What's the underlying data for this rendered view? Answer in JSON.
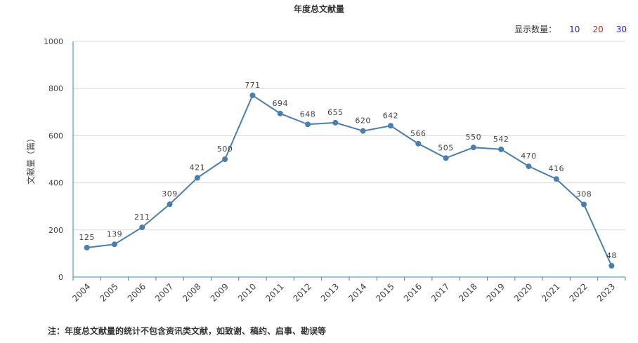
{
  "colors": {
    "line": "#4a7eac",
    "axis": "#2d8ab0",
    "grid": "#dcdcdc",
    "opt_10": "#2222cc",
    "opt_20": "#cc2222",
    "opt_30": "#2222cc"
  },
  "controls": {
    "display_count_label": "显示数量：",
    "options": [
      "10",
      "20",
      "30"
    ]
  },
  "note": "注：年度总文献量的统计不包含资讯类文献，如致谢、稿约、启事、勘误等",
  "chart_data": {
    "type": "line",
    "title": "年度总文献量",
    "xlabel": "",
    "ylabel": "文献量（篇）",
    "ylim": [
      0,
      1000
    ],
    "yticks": [
      0,
      200,
      400,
      600,
      800,
      1000
    ],
    "grid": true,
    "categories": [
      "2004",
      "2005",
      "2006",
      "2007",
      "2008",
      "2009",
      "2010",
      "2011",
      "2012",
      "2013",
      "2014",
      "2015",
      "2016",
      "2017",
      "2018",
      "2019",
      "2020",
      "2021",
      "2022",
      "2023"
    ],
    "series": [
      {
        "values": [
          125,
          139,
          211,
          309,
          421,
          500,
          771,
          694,
          648,
          655,
          620,
          642,
          566,
          505,
          550,
          542,
          470,
          416,
          308,
          48
        ]
      }
    ]
  }
}
